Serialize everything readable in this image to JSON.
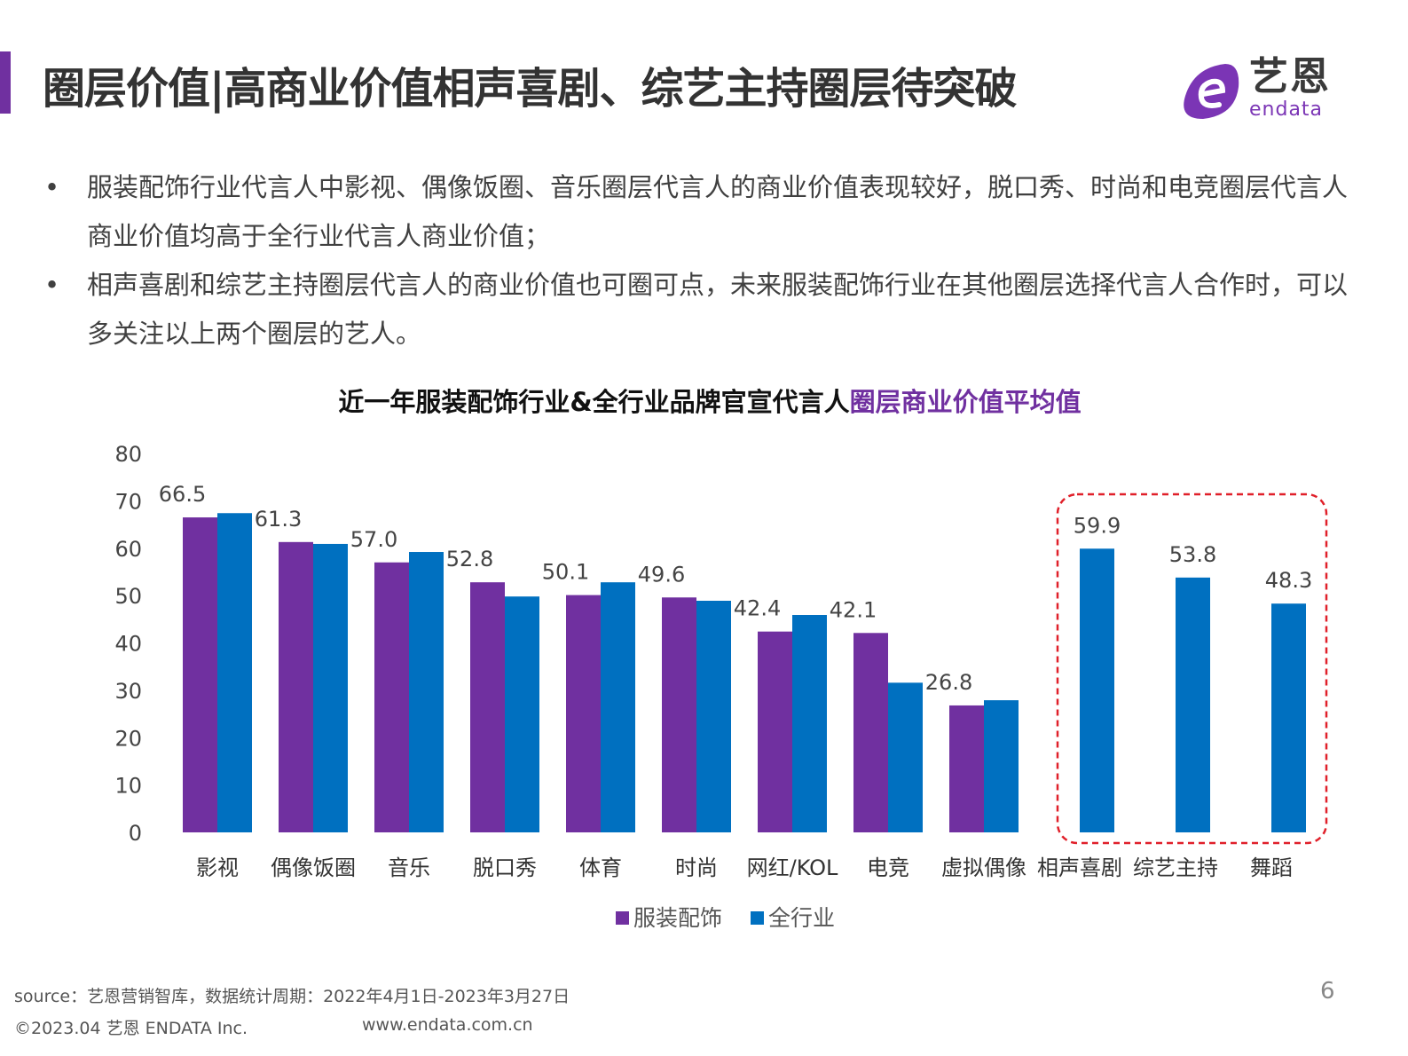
{
  "header": {
    "title": "圈层价值|高商业价值相声喜剧、综艺主持圈层待突破",
    "logo_cn": "艺恩",
    "logo_en": "endata",
    "accent_color": "#7030a0"
  },
  "bullets": [
    {
      "dot": "•",
      "text": "服装配饰行业代言人中影视、偶像饭圈、音乐圈层代言人的商业价值表现较好，脱口秀、时尚和电竞圈层代言人商业价值均高于全行业代言人商业价值；"
    },
    {
      "dot": "•",
      "text": "相声喜剧和综艺主持圈层代言人的商业价值也可圈可点，未来服装配饰行业在其他圈层选择代言人合作时，可以多关注以上两个圈层的艺人。"
    }
  ],
  "chart_data": {
    "type": "bar",
    "title_main": "近一年服装配饰行业&全行业品牌官宣代言人",
    "title_highlight": "圈层商业价值平均值",
    "categories": [
      "影视",
      "偶像饭圈",
      "音乐",
      "脱口秀",
      "体育",
      "时尚",
      "网红/KOL",
      "电竞",
      "虚拟偶像",
      "相声喜剧",
      "综艺主持",
      "舞蹈"
    ],
    "series": [
      {
        "name": "服装配饰",
        "color": "#7030a0",
        "values": [
          66.5,
          61.3,
          57.0,
          52.8,
          50.1,
          49.6,
          42.4,
          42.1,
          26.8,
          null,
          null,
          null
        ]
      },
      {
        "name": "全行业",
        "color": "#0070c0",
        "values": [
          67.4,
          60.9,
          59.2,
          49.8,
          52.8,
          48.9,
          45.9,
          31.6,
          27.9,
          59.9,
          53.8,
          48.3
        ]
      }
    ],
    "data_labels": [
      "66.5",
      "61.3",
      "57.0",
      "52.8",
      "50.1",
      "49.6",
      "42.4",
      "42.1",
      "26.8",
      "59.9",
      "53.8",
      "48.3"
    ],
    "yticks": [
      "0",
      "10",
      "20",
      "30",
      "40",
      "50",
      "60",
      "70",
      "80"
    ],
    "ylim": [
      0,
      80
    ],
    "grid": false,
    "legend_position": "bottom",
    "highlight_box": {
      "categories": [
        "相声喜剧",
        "综艺主持"
      ],
      "color": "#e0202a",
      "style": "dashed"
    }
  },
  "footer": {
    "source": "source：艺恩营销智库，数据统计周期：2022年4月1日-2023年3月27日",
    "copyright": "©2023.04 艺恩 ENDATA Inc.",
    "website": "www.endata.com.cn",
    "page": "6"
  }
}
